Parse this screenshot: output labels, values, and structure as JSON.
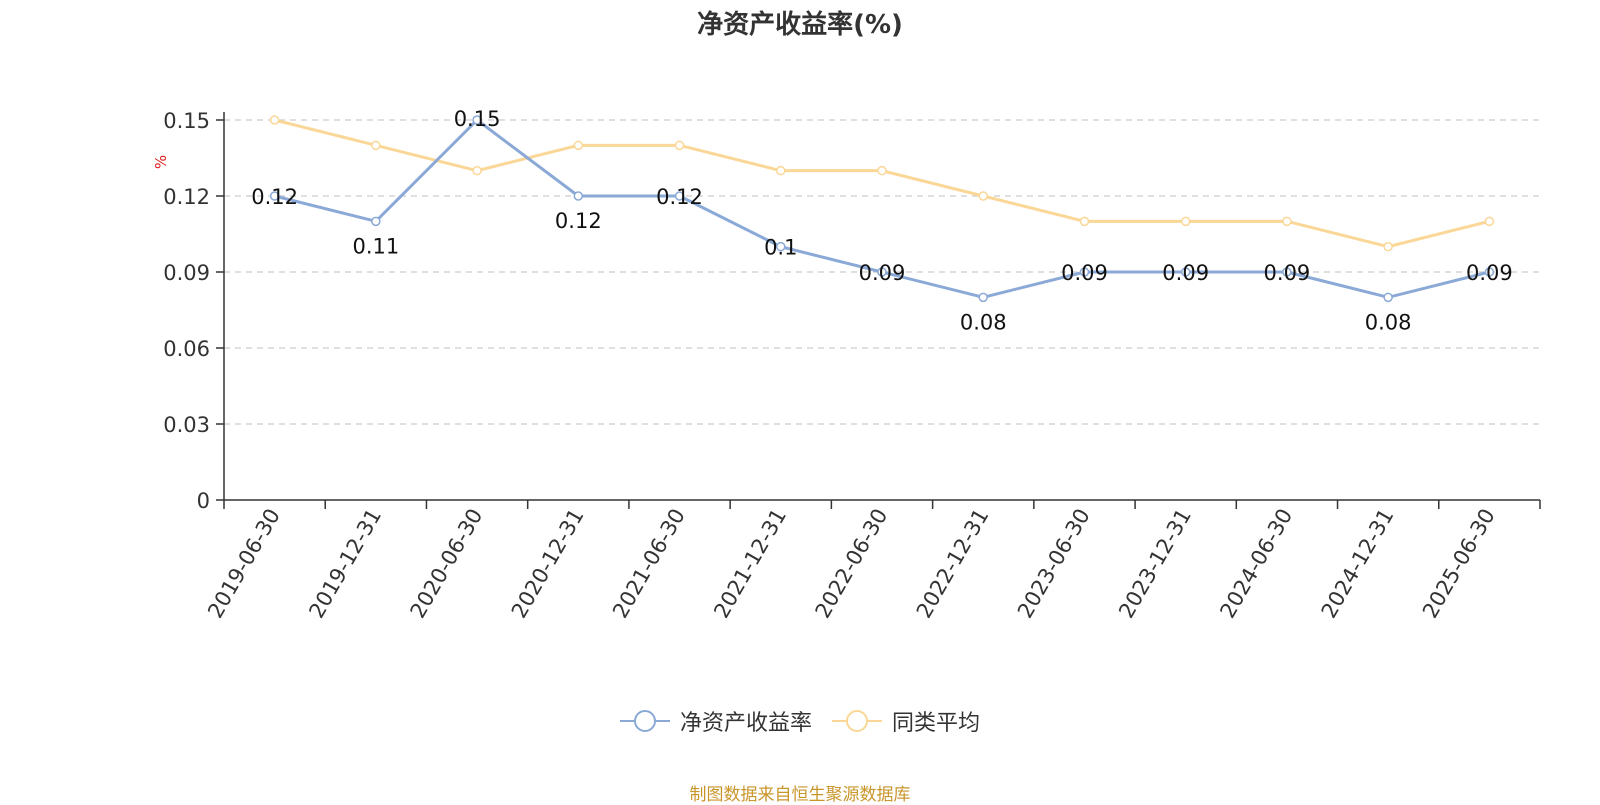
{
  "chart_data": {
    "type": "line",
    "title": "净资产收益率(%)",
    "ylabel": "%",
    "xlabel": "",
    "ylim": [
      0,
      0.15
    ],
    "yticks": [
      "0",
      "0.03",
      "0.06",
      "0.09",
      "0.12",
      "0.15"
    ],
    "grid": true,
    "legend_position": "bottom",
    "categories": [
      "2019-06-30",
      "2019-12-31",
      "2020-06-30",
      "2020-12-31",
      "2021-06-30",
      "2021-12-31",
      "2022-06-30",
      "2022-12-31",
      "2023-06-30",
      "2023-12-31",
      "2024-06-30",
      "2024-12-31",
      "2025-06-30"
    ],
    "series": [
      {
        "name": "净资产收益率",
        "color": "#8ba9d6",
        "values": [
          0.12,
          0.11,
          0.15,
          0.12,
          0.12,
          0.1,
          0.09,
          0.08,
          0.09,
          0.09,
          0.09,
          0.08,
          0.09
        ],
        "labels": [
          "0.12",
          "0.11",
          "0.15",
          "0.12",
          "0.12",
          "0.1",
          "0.09",
          "0.08",
          "0.09",
          "0.09",
          "0.09",
          "0.08",
          "0.09"
        ]
      },
      {
        "name": "同类平均",
        "color": "#fad796",
        "values": [
          0.15,
          0.14,
          0.13,
          0.14,
          0.14,
          0.13,
          0.13,
          0.12,
          0.11,
          0.11,
          0.11,
          0.1,
          0.11
        ]
      }
    ]
  },
  "footer": "制图数据来自恒生聚源数据库"
}
